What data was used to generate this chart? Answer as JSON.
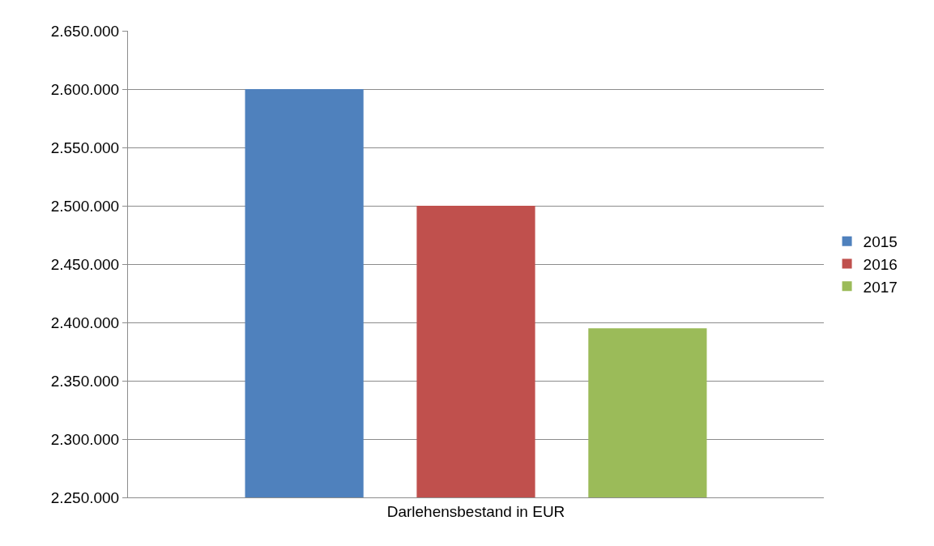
{
  "chart_data": {
    "type": "bar",
    "categories": [
      "Darlehensbestand in EUR"
    ],
    "series": [
      {
        "name": "2015",
        "color": "#4f81bd",
        "values": [
          2600000
        ]
      },
      {
        "name": "2016",
        "color": "#c0504d",
        "values": [
          2500000
        ]
      },
      {
        "name": "2017",
        "color": "#9bbb59",
        "values": [
          2395000
        ]
      }
    ],
    "ylim": [
      2250000,
      2650000
    ],
    "yticks": [
      {
        "value": 2250000,
        "label": "2.250.000"
      },
      {
        "value": 2300000,
        "label": "2.300.000"
      },
      {
        "value": 2350000,
        "label": "2.350.000"
      },
      {
        "value": 2400000,
        "label": "2.400.000"
      },
      {
        "value": 2450000,
        "label": "2.450.000"
      },
      {
        "value": 2500000,
        "label": "2.500.000"
      },
      {
        "value": 2550000,
        "label": "2.550.000"
      },
      {
        "value": 2600000,
        "label": "2.600.000"
      },
      {
        "value": 2650000,
        "label": "2.650.000"
      }
    ],
    "grid": "y",
    "legend": "right"
  }
}
